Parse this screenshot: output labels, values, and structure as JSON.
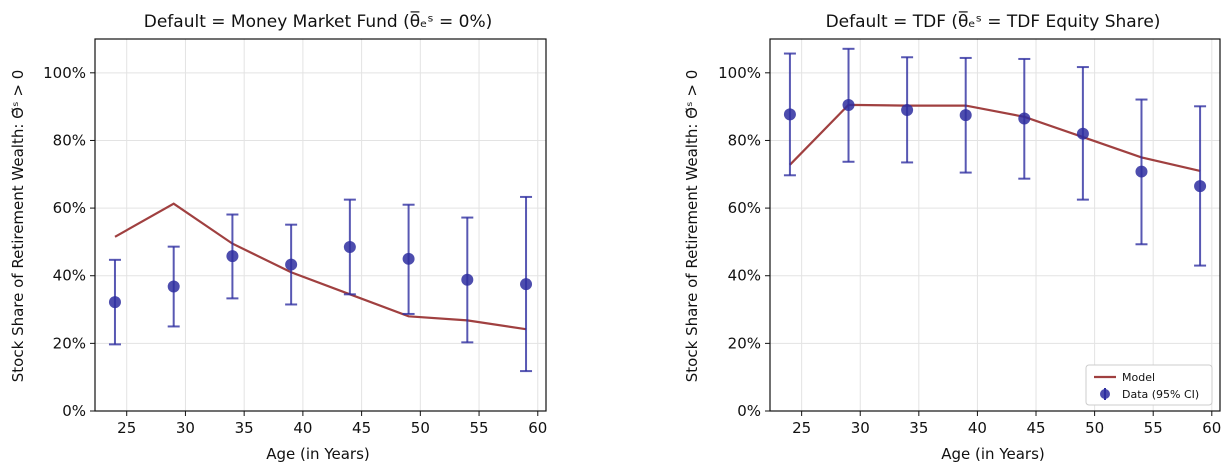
{
  "colors": {
    "model": "#a04040",
    "data": "#2e2ea0",
    "grid": "#e3e3e3",
    "axis": "#111111"
  },
  "chart_data": [
    {
      "type": "line",
      "title": "Default = Money Market Fund (θ̅ₑˢ = 0%)",
      "xlabel": "Age (in Years)",
      "ylabel": "Stock Share of Retirement Wealth: Θ̃ˢ > 0",
      "xlim": [
        22.3,
        60.7
      ],
      "ylim": [
        0,
        110
      ],
      "xticks": [
        25,
        30,
        35,
        40,
        45,
        50,
        55,
        60
      ],
      "yticks": [
        0,
        20,
        40,
        60,
        80,
        100
      ],
      "ytick_labels": [
        "0%",
        "20%",
        "40%",
        "60%",
        "80%",
        "100%"
      ],
      "grid": true,
      "series": [
        {
          "name": "Model",
          "kind": "line",
          "x": [
            24,
            29,
            34,
            39,
            44,
            49,
            54,
            59
          ],
          "y": [
            51.5,
            61.3,
            49.5,
            41.0,
            34.5,
            28.0,
            26.8,
            24.2
          ]
        },
        {
          "name": "Data (95% CI)",
          "kind": "errorbar",
          "x": [
            24,
            29,
            34,
            39,
            44,
            49,
            54,
            59
          ],
          "y": [
            32.2,
            36.8,
            45.8,
            43.3,
            48.5,
            45.0,
            38.8,
            37.5
          ],
          "lower": [
            19.7,
            25.0,
            33.3,
            31.5,
            34.5,
            28.7,
            20.3,
            11.8
          ],
          "upper": [
            44.7,
            48.6,
            58.1,
            55.1,
            62.5,
            61.0,
            57.2,
            63.3
          ]
        }
      ],
      "legend": null
    },
    {
      "type": "line",
      "title": "Default = TDF (θ̅ₑˢ = TDF Equity Share)",
      "xlabel": "Age (in Years)",
      "ylabel": "Stock Share of Retirement Wealth: Θ̃ˢ > 0",
      "xlim": [
        22.3,
        60.7
      ],
      "ylim": [
        0,
        110
      ],
      "xticks": [
        25,
        30,
        35,
        40,
        45,
        50,
        55,
        60
      ],
      "yticks": [
        0,
        20,
        40,
        60,
        80,
        100
      ],
      "ytick_labels": [
        "0%",
        "20%",
        "40%",
        "60%",
        "80%",
        "100%"
      ],
      "grid": true,
      "series": [
        {
          "name": "Model",
          "kind": "line",
          "x": [
            24,
            29,
            34,
            39,
            44,
            49,
            54,
            59
          ],
          "y": [
            72.8,
            90.5,
            90.3,
            90.3,
            87.0,
            81.0,
            75.0,
            71.0
          ]
        },
        {
          "name": "Data (95% CI)",
          "kind": "errorbar",
          "x": [
            24,
            29,
            34,
            39,
            44,
            49,
            54,
            59
          ],
          "y": [
            87.7,
            90.5,
            89.0,
            87.5,
            86.5,
            82.0,
            70.8,
            66.5
          ],
          "lower": [
            69.7,
            73.7,
            73.5,
            70.5,
            68.7,
            62.5,
            49.3,
            43.0
          ],
          "upper": [
            105.7,
            107.1,
            104.6,
            104.4,
            104.1,
            101.7,
            92.1,
            90.1
          ]
        }
      ],
      "legend": {
        "placement": "bottom-right",
        "entries": [
          "Model",
          "Data (95% CI)"
        ]
      }
    }
  ]
}
